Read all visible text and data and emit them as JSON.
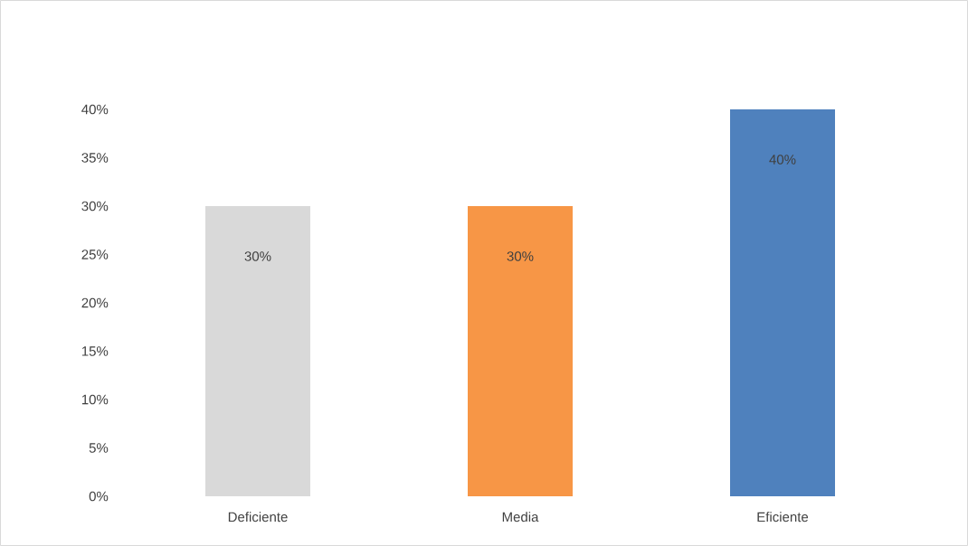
{
  "chart_data": {
    "type": "bar",
    "categories": [
      "Deficiente",
      "Media",
      "Eficiente"
    ],
    "values": [
      30,
      30,
      40
    ],
    "colors": [
      "#d9d9d9",
      "#f79646",
      "#4f81bd"
    ],
    "value_labels": [
      "30%",
      "30%",
      "40%"
    ],
    "ylim": [
      0,
      40
    ],
    "yticks": [
      {
        "value": 0,
        "label": "0%"
      },
      {
        "value": 5,
        "label": "5%"
      },
      {
        "value": 10,
        "label": "10%"
      },
      {
        "value": 15,
        "label": "15%"
      },
      {
        "value": 20,
        "label": "20%"
      },
      {
        "value": 25,
        "label": "25%"
      },
      {
        "value": 30,
        "label": "30%"
      },
      {
        "value": 35,
        "label": "35%"
      },
      {
        "value": 40,
        "label": "40%"
      }
    ],
    "grid": false
  }
}
